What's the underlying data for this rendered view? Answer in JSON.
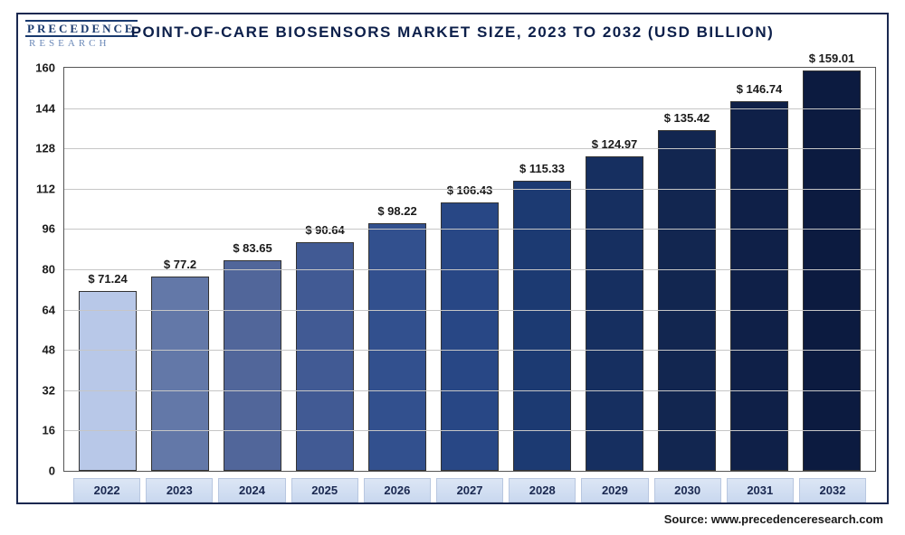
{
  "logo": {
    "top": "PRECEDENCE",
    "bottom": "RESEARCH"
  },
  "title": "POINT-OF-CARE BIOSENSORS MARKET SIZE, 2023 TO 2032 (USD BILLION)",
  "source": "Source: www.precedenceresearch.com",
  "chart": {
    "type": "bar",
    "ylim": [
      0,
      160
    ],
    "ytick_step": 16,
    "yticks": [
      0,
      16,
      32,
      48,
      64,
      80,
      96,
      112,
      128,
      144,
      160
    ],
    "grid_color": "#c6c6c6",
    "background_color": "#ffffff",
    "border_color": "#555555",
    "bar_border": "#333333",
    "label_fontsize": 13,
    "title_fontsize": 17,
    "title_color": "#0c1f4a",
    "bar_width": 0.8,
    "categories": [
      "2022",
      "2023",
      "2024",
      "2025",
      "2026",
      "2027",
      "2028",
      "2029",
      "2030",
      "2031",
      "2032"
    ],
    "values": [
      71.24,
      77.2,
      83.65,
      90.64,
      98.22,
      106.43,
      115.33,
      124.97,
      135.42,
      146.74,
      159.01
    ],
    "value_labels": [
      "$ 71.24",
      "$ 77.2",
      "$ 83.65",
      "$ 90.64",
      "$ 98.22",
      "$ 106.43",
      "$ 115.33",
      "$ 124.97",
      "$ 135.42",
      "$ 146.74",
      "$ 159.01"
    ],
    "bar_colors": [
      "#b8c8e8",
      "#6378a8",
      "#51669a",
      "#415a94",
      "#32508e",
      "#284785",
      "#1c3a72",
      "#162f60",
      "#122650",
      "#0f2048",
      "#0c1b40"
    ],
    "xcell_bg_top": "#dce6f5",
    "xcell_bg_bottom": "#c9d8ef",
    "xcell_border": "#b8c7e0",
    "xcell_color": "#1a2850"
  }
}
